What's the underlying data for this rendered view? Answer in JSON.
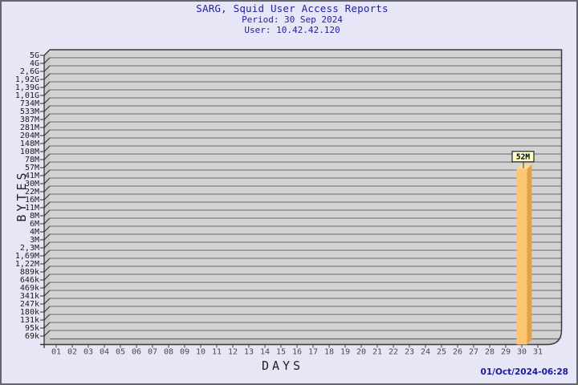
{
  "header": {
    "title": "SARG, Squid User Access Reports",
    "period": "Period: 30 Sep 2024",
    "user": "User: 10.42.42.120"
  },
  "footer": {
    "timestamp": "01/Oct/2024-06:28"
  },
  "colors": {
    "page_bg": "#E6E6F6",
    "frame_border": "#66666E",
    "title_text": "#22229A",
    "timestamp_text": "#1A1A9B",
    "plot_bg": "#D3D3D3",
    "grid_line": "#6A6A6A",
    "wall_fill": "#C8C8C8",
    "wall_line": "#2A2A2A",
    "outline": "#3A3A3A",
    "y_tick_text": "#1A1A1A",
    "x_tick_text": "#4A4A4A",
    "bar_front": "#FFC672",
    "bar_side": "#DFA347",
    "bar_top": "#FFD98E",
    "annotation_bg": "#FFFFCC",
    "annotation_border": "#000000",
    "annotation_text": "#000000"
  },
  "chart_data": {
    "type": "bar",
    "title": "SARG, Squid User Access Reports",
    "subtitle": "Period: 30 Sep 2024",
    "subtitle2": "User: 10.42.42.120",
    "xlabel": "DAYS",
    "ylabel": "BYTES",
    "y_scale": "log",
    "grid": "horizontal",
    "legend_position": "none",
    "y_ticks": [
      "5G",
      "4G",
      "2,6G",
      "1,92G",
      "1,39G",
      "1,01G",
      "734M",
      "533M",
      "387M",
      "281M",
      "204M",
      "148M",
      "108M",
      "78M",
      "57M",
      "41M",
      "30M",
      "22M",
      "16M",
      "11M",
      "8M",
      "6M",
      "4M",
      "3M",
      "2,3M",
      "1,69M",
      "1,22M",
      "889k",
      "646k",
      "469k",
      "341k",
      "247k",
      "180k",
      "131k",
      "95k",
      "69k"
    ],
    "x_ticks": [
      "01",
      "02",
      "03",
      "04",
      "05",
      "06",
      "07",
      "08",
      "09",
      "10",
      "11",
      "12",
      "13",
      "14",
      "15",
      "16",
      "17",
      "18",
      "19",
      "20",
      "21",
      "22",
      "23",
      "24",
      "25",
      "26",
      "27",
      "28",
      "29",
      "30",
      "31"
    ],
    "bars": [
      {
        "x": "30",
        "value": "52M",
        "label": "52M",
        "value_bytes": 52000000
      }
    ]
  }
}
